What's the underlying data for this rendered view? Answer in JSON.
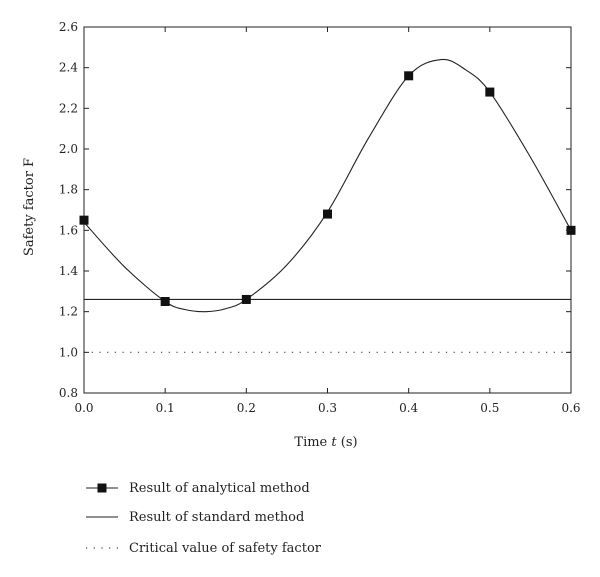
{
  "chart_data": {
    "type": "line",
    "xlabel_prefix": "Time ",
    "xlabel_var": "t",
    "xlabel_suffix": " (s)",
    "ylabel": "Safety factor F",
    "xlim": [
      0.0,
      0.6
    ],
    "ylim": [
      0.8,
      2.6
    ],
    "x_ticks": [
      "0.0",
      "0.1",
      "0.2",
      "0.3",
      "0.4",
      "0.5",
      "0.6"
    ],
    "y_ticks": [
      "0.8",
      "1.0",
      "1.2",
      "1.4",
      "1.6",
      "1.8",
      "2.0",
      "2.2",
      "2.4",
      "2.6"
    ],
    "grid": false,
    "legend_position": "bottom",
    "series": [
      {
        "name": "Result of analytical method",
        "style": "line-with-square-markers",
        "points": [
          {
            "x": 0.0,
            "y": 1.65
          },
          {
            "x": 0.1,
            "y": 1.25
          },
          {
            "x": 0.2,
            "y": 1.26
          },
          {
            "x": 0.3,
            "y": 1.68
          },
          {
            "x": 0.4,
            "y": 2.36
          },
          {
            "x": 0.5,
            "y": 2.28
          },
          {
            "x": 0.6,
            "y": 1.6
          }
        ],
        "curve": [
          {
            "x": 0.0,
            "y": 1.64
          },
          {
            "x": 0.05,
            "y": 1.42
          },
          {
            "x": 0.1,
            "y": 1.25
          },
          {
            "x": 0.125,
            "y": 1.21
          },
          {
            "x": 0.15,
            "y": 1.2
          },
          {
            "x": 0.175,
            "y": 1.215
          },
          {
            "x": 0.2,
            "y": 1.26
          },
          {
            "x": 0.25,
            "y": 1.43
          },
          {
            "x": 0.3,
            "y": 1.69
          },
          {
            "x": 0.35,
            "y": 2.05
          },
          {
            "x": 0.4,
            "y": 2.36
          },
          {
            "x": 0.44,
            "y": 2.44
          },
          {
            "x": 0.47,
            "y": 2.39
          },
          {
            "x": 0.5,
            "y": 2.28
          },
          {
            "x": 0.55,
            "y": 1.96
          },
          {
            "x": 0.6,
            "y": 1.6
          }
        ]
      },
      {
        "name": "Result of standard method",
        "style": "solid-line",
        "points": [
          {
            "x": 0.0,
            "y": 1.26
          },
          {
            "x": 0.6,
            "y": 1.26
          }
        ]
      },
      {
        "name": "Critical value of safety factor",
        "style": "dotted-line",
        "points": [
          {
            "x": 0.0,
            "y": 1.0
          },
          {
            "x": 0.6,
            "y": 1.0
          }
        ]
      }
    ]
  }
}
